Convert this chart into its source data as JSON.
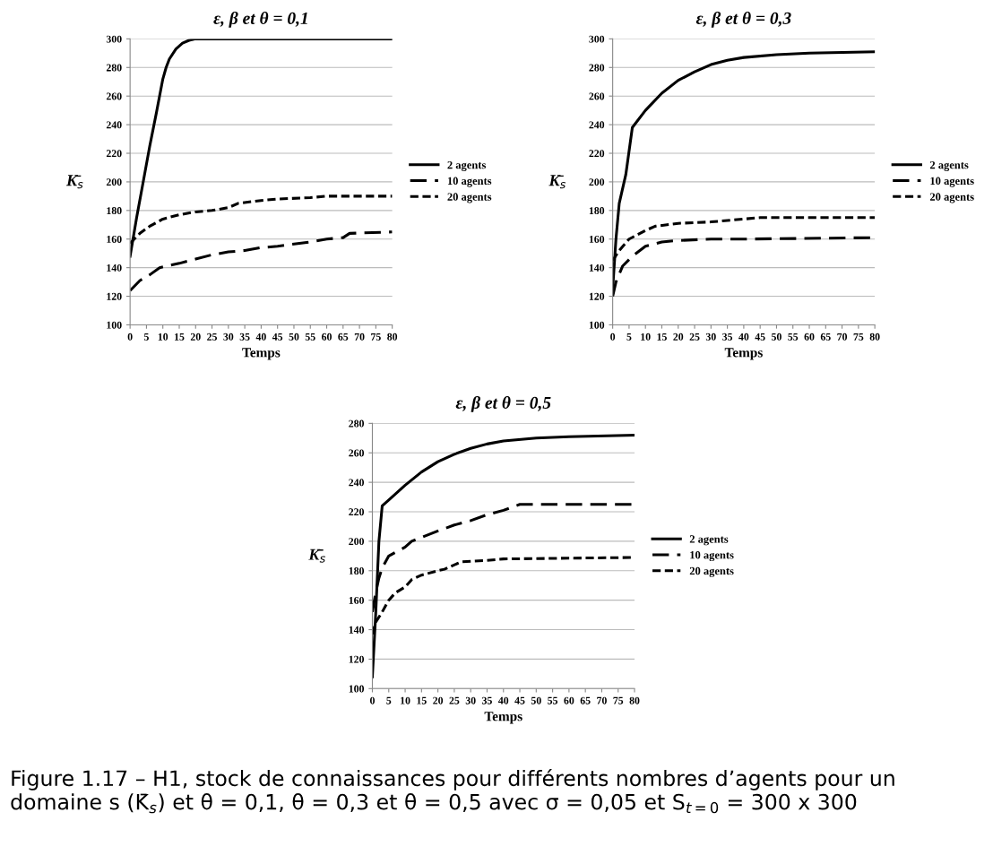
{
  "chart_data": [
    {
      "type": "line",
      "title": "ε, β et θ = 0,1",
      "xlabel": "Temps",
      "ylabel": "K̄$_{s}$",
      "xlim": [
        0,
        80
      ],
      "xticks": [
        0,
        5,
        10,
        15,
        20,
        25,
        30,
        35,
        40,
        45,
        50,
        55,
        60,
        65,
        70,
        75,
        80
      ],
      "ylim": [
        100,
        300
      ],
      "yticks": [
        100,
        120,
        140,
        160,
        180,
        200,
        220,
        240,
        260,
        280,
        300
      ],
      "grid": "y",
      "legend": "right",
      "series": [
        {
          "name": "2 agents",
          "color": "#000000",
          "line_style": "solid",
          "x": [
            0,
            2,
            4,
            6,
            8,
            10,
            11,
            12,
            14,
            16,
            18,
            20,
            25,
            80
          ],
          "values": [
            148,
            175,
            200,
            225,
            248,
            272,
            280,
            286,
            293,
            297,
            299,
            300,
            300,
            300
          ]
        },
        {
          "name": "10 agents",
          "color": "#000000",
          "line_style": "dashed",
          "x": [
            0,
            3,
            6,
            9,
            15,
            20,
            25,
            30,
            35,
            40,
            45,
            55,
            60,
            65,
            67,
            80
          ],
          "values": [
            124,
            131,
            135,
            140,
            143,
            146,
            149,
            151,
            152,
            154,
            155,
            158,
            160,
            161,
            164,
            165
          ]
        },
        {
          "name": "20 agents",
          "color": "#000000",
          "line_style": "dotted",
          "x": [
            0,
            3,
            6,
            10,
            15,
            20,
            25,
            30,
            33,
            40,
            45,
            55,
            60,
            80
          ],
          "values": [
            157,
            164,
            169,
            174,
            177,
            179,
            180,
            182,
            185,
            187,
            188,
            189,
            190,
            190
          ]
        }
      ]
    },
    {
      "type": "line",
      "title": "ε, β et θ = 0,3",
      "xlabel": "Temps",
      "ylabel": "K̄$_{s}$",
      "xlim": [
        0,
        80
      ],
      "xticks": [
        0,
        5,
        10,
        15,
        20,
        25,
        30,
        35,
        40,
        45,
        50,
        55,
        60,
        65,
        70,
        75,
        80
      ],
      "ylim": [
        100,
        300
      ],
      "yticks": [
        100,
        120,
        140,
        160,
        180,
        200,
        220,
        240,
        260,
        280,
        300
      ],
      "grid": "y",
      "legend": "right",
      "series": [
        {
          "name": "2 agents",
          "color": "#000000",
          "line_style": "solid",
          "x": [
            0,
            1,
            2,
            4,
            6,
            10,
            15,
            20,
            25,
            30,
            35,
            40,
            50,
            60,
            80
          ],
          "values": [
            125,
            160,
            185,
            205,
            238,
            250,
            262,
            271,
            277,
            282,
            285,
            287,
            289,
            290,
            291
          ]
        },
        {
          "name": "10 agents",
          "color": "#000000",
          "line_style": "dashed",
          "x": [
            0,
            1,
            3,
            6,
            10,
            15,
            20,
            30,
            40,
            80
          ],
          "values": [
            120,
            130,
            141,
            148,
            155,
            158,
            159,
            160,
            160,
            161
          ]
        },
        {
          "name": "20 agents",
          "color": "#000000",
          "line_style": "dotted",
          "x": [
            0,
            2,
            5,
            10,
            13,
            20,
            30,
            40,
            45,
            80
          ],
          "values": [
            145,
            152,
            160,
            166,
            169,
            171,
            172,
            174,
            175,
            175
          ]
        }
      ]
    },
    {
      "type": "line",
      "title": "ε, β et θ = 0,5",
      "xlabel": "Temps",
      "ylabel": "K̄$_{s}$",
      "xlim": [
        0,
        80
      ],
      "xticks": [
        0,
        5,
        10,
        15,
        20,
        25,
        30,
        35,
        40,
        45,
        50,
        55,
        60,
        65,
        70,
        75,
        80
      ],
      "ylim": [
        100,
        280
      ],
      "yticks": [
        100,
        120,
        140,
        160,
        180,
        200,
        220,
        240,
        260,
        280
      ],
      "grid": "y",
      "legend": "right",
      "annotations": [
        "Figure 1.17 – H1, stock de connaissances pour différents nombres d’agents pour un domaine s (K̄$_{s}$) et θ = 0,1, θ = 0,3 et θ = 0,5 avec σ = 0,05 et S$_{t=0}$ = 300 x 300"
      ],
      "series": [
        {
          "name": "2 agents",
          "color": "#000000",
          "line_style": "solid",
          "x": [
            0,
            1,
            2,
            3,
            5,
            10,
            15,
            20,
            25,
            30,
            35,
            40,
            50,
            60,
            80
          ],
          "values": [
            108,
            150,
            200,
            224,
            228,
            238,
            247,
            254,
            259,
            263,
            266,
            268,
            270,
            271,
            272
          ]
        },
        {
          "name": "10 agents",
          "color": "#000000",
          "line_style": "dashed",
          "x": [
            0,
            1,
            2,
            3,
            5,
            10,
            12,
            20,
            25,
            30,
            35,
            40,
            45,
            80
          ],
          "values": [
            152,
            165,
            175,
            182,
            190,
            196,
            200,
            207,
            211,
            214,
            218,
            221,
            225,
            225
          ]
        },
        {
          "name": "20 agents",
          "color": "#000000",
          "line_style": "dotted",
          "x": [
            0,
            1,
            3,
            5,
            7,
            10,
            12,
            15,
            20,
            22,
            27,
            35,
            40,
            80
          ],
          "values": [
            137,
            145,
            152,
            160,
            165,
            169,
            174,
            177,
            180,
            181,
            186,
            187,
            188,
            189
          ]
        }
      ]
    }
  ]
}
